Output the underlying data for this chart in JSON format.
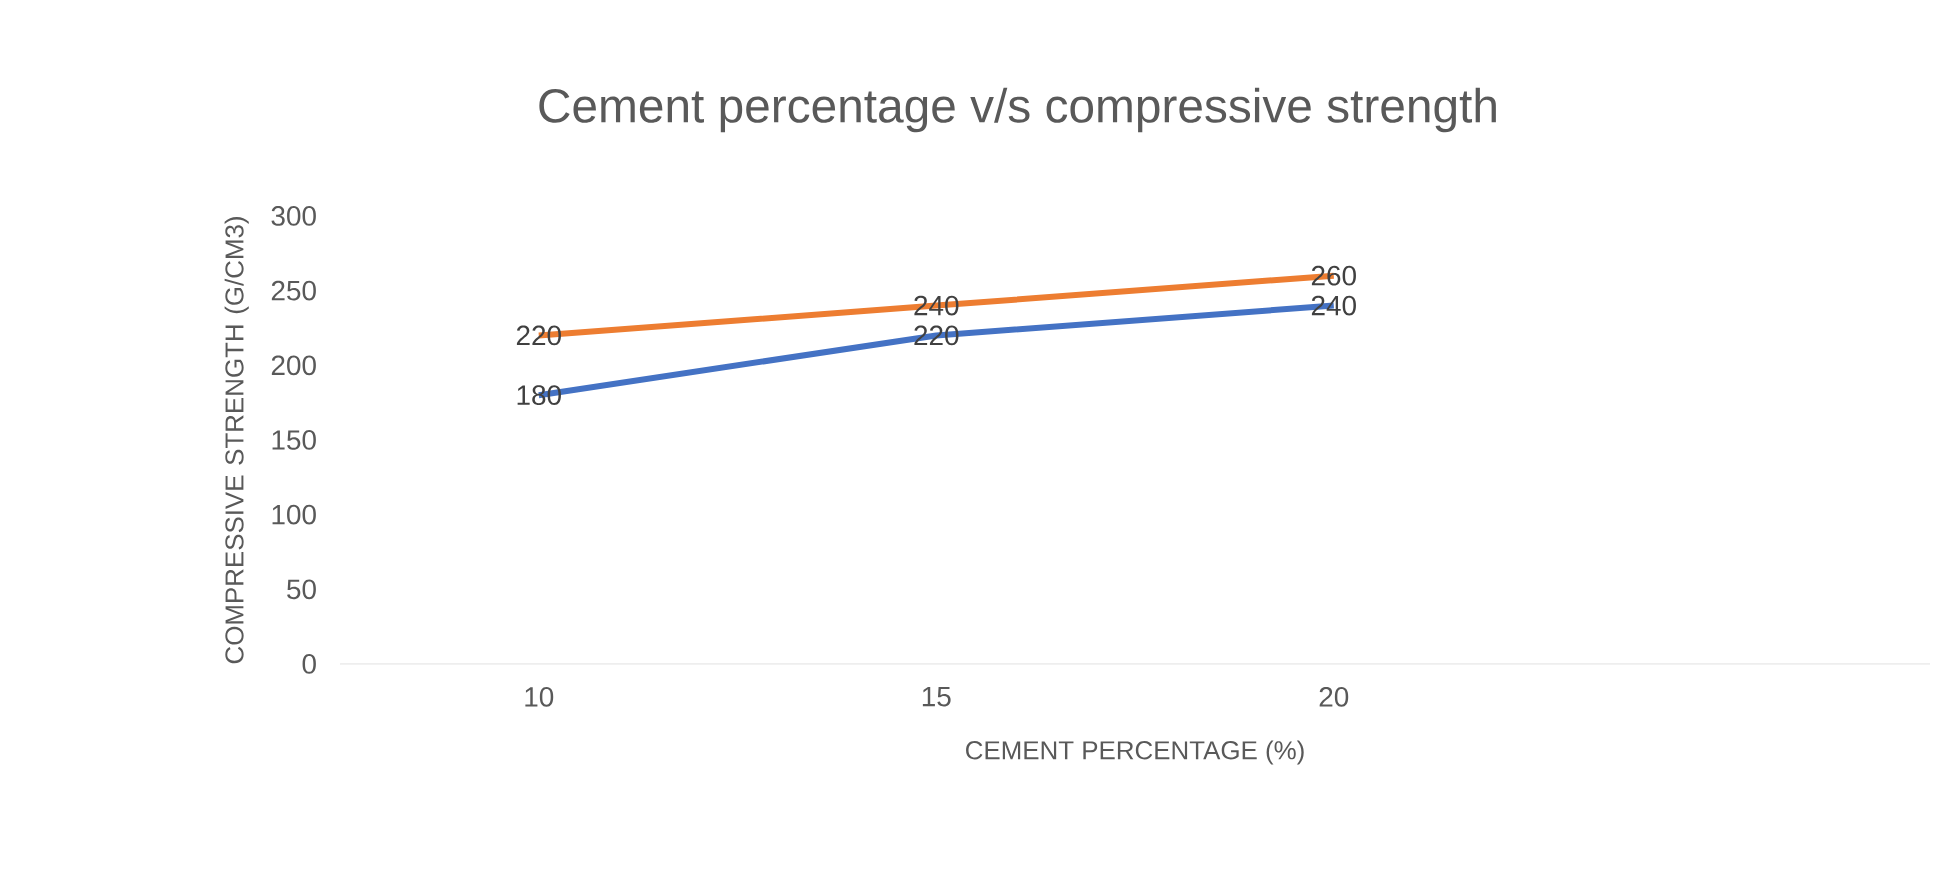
{
  "chart_data": {
    "type": "line",
    "title": "Cement percentage v/s compressive strength",
    "xlabel": "CEMENT PERCENTAGE (%)",
    "ylabel": "COMPRESSIVE STRENGTH (G/CM3)",
    "categories": [
      "10",
      "15",
      "20",
      null
    ],
    "series": [
      {
        "color": "#4472c4",
        "values": [
          180,
          220,
          240,
          null
        ]
      },
      {
        "color": "#ed7d31",
        "values": [
          220,
          240,
          260,
          null
        ]
      }
    ],
    "ylim": [
      0,
      300
    ],
    "yticks": [
      0,
      50,
      100,
      150,
      200,
      250,
      300
    ],
    "data_labels": true,
    "grid": false,
    "marker": "none",
    "line_style": "solid"
  }
}
